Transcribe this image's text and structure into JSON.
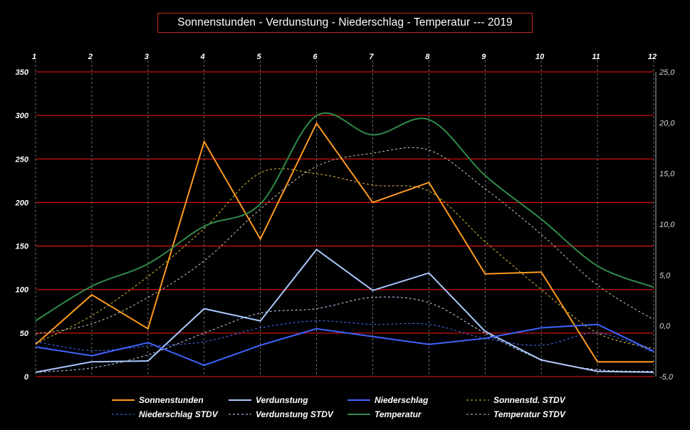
{
  "chart_data": {
    "type": "line",
    "title": "Sonnenstunden - Verdunstung - Niederschlag - Temperatur ---  2019",
    "x": [
      "1",
      "2",
      "3",
      "4",
      "5",
      "6",
      "7",
      "8",
      "9",
      "10",
      "11",
      "12"
    ],
    "y_left": {
      "lim": [
        0,
        350
      ],
      "ticks": [
        "0",
        "50",
        "100",
        "150",
        "200",
        "250",
        "300",
        "350"
      ]
    },
    "y_right": {
      "lim": [
        -5,
        25
      ],
      "ticks": [
        "-5,0",
        "0,0",
        "5,0",
        "10,0",
        "15,0",
        "20,0",
        "25,0"
      ]
    },
    "grid": "horizontal red lines, vertical dashed lines",
    "legend_position": "bottom",
    "series": [
      {
        "name": "Sonnenstunden",
        "axis": "left",
        "style": "solid",
        "color": "#ff9a1e",
        "values": [
          37,
          94,
          55,
          270,
          158,
          291,
          200,
          223,
          118,
          120,
          17,
          17
        ]
      },
      {
        "name": "Verdunstung",
        "axis": "left",
        "style": "solid",
        "color": "#aac8ff",
        "values": [
          5,
          17,
          18,
          78,
          64,
          146,
          99,
          119,
          52,
          19,
          6,
          5
        ]
      },
      {
        "name": "Niederschlag",
        "axis": "left",
        "style": "solid",
        "color": "#3f64ff",
        "values": [
          34,
          24,
          39,
          13,
          36,
          55,
          46,
          37,
          44,
          56,
          60,
          29
        ]
      },
      {
        "name": "Sonnenstd. STDV",
        "axis": "left",
        "style": "dotted",
        "color": "#e6c040",
        "values": [
          38,
          70,
          115,
          170,
          234,
          233,
          220,
          213,
          155,
          100,
          50,
          32
        ]
      },
      {
        "name": "Niederschlag STDV",
        "axis": "left",
        "style": "dotted",
        "color": "#5070ff",
        "values": [
          40,
          30,
          35,
          40,
          56,
          64,
          60,
          60,
          44,
          36,
          50,
          28
        ]
      },
      {
        "name": "Verdunstung STDV",
        "axis": "left",
        "style": "dotted",
        "color": "#c8d8ff",
        "values": [
          5,
          10,
          25,
          50,
          73,
          78,
          91,
          85,
          50,
          20,
          8,
          6
        ]
      },
      {
        "name": "Temperatur",
        "axis": "right",
        "style": "solid",
        "color": "#2e8a4a",
        "values": [
          0.5,
          3.9,
          6.1,
          9.8,
          12.0,
          20.7,
          18.8,
          20.3,
          14.8,
          10.5,
          5.9,
          3.8
        ]
      },
      {
        "name": "Temperatur STDV",
        "axis": "right",
        "style": "dotted",
        "color": "#c8c8b0",
        "values": [
          -0.8,
          0.2,
          2.8,
          6.4,
          11.5,
          15.7,
          17.0,
          17.3,
          13.5,
          9.0,
          4.0,
          0.6
        ]
      }
    ]
  }
}
